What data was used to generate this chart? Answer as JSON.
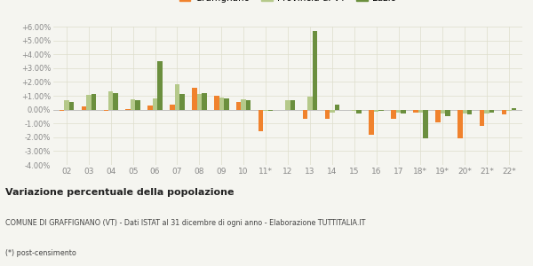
{
  "years": [
    "02",
    "03",
    "04",
    "05",
    "06",
    "07",
    "08",
    "09",
    "10",
    "11*",
    "12",
    "13",
    "14",
    "15",
    "16",
    "17",
    "18*",
    "19*",
    "20*",
    "21*",
    "22*"
  ],
  "graffignano": [
    -0.1,
    0.25,
    -0.1,
    0.02,
    0.3,
    0.35,
    1.55,
    1.0,
    0.55,
    -1.55,
    -0.05,
    -0.65,
    -0.65,
    -0.05,
    -1.8,
    -0.65,
    -0.2,
    -0.9,
    -2.1,
    -1.2,
    -0.35
  ],
  "provincia_vt": [
    0.65,
    1.05,
    1.35,
    0.75,
    0.8,
    1.85,
    1.15,
    0.9,
    0.75,
    -0.1,
    0.65,
    0.95,
    -0.2,
    -0.1,
    -0.15,
    -0.2,
    -0.2,
    -0.3,
    -0.3,
    -0.25,
    -0.1
  ],
  "lazio": [
    0.55,
    1.12,
    1.2,
    0.7,
    3.5,
    1.15,
    1.2,
    0.8,
    0.7,
    -0.1,
    0.7,
    5.65,
    0.35,
    -0.25,
    -0.1,
    -0.25,
    -2.05,
    -0.5,
    -0.35,
    -0.2,
    0.1
  ],
  "color_graffignano": "#f0822d",
  "color_provincia": "#b5c98a",
  "color_lazio": "#6b8f3e",
  "ylim_min": -4.0,
  "ylim_max": 6.0,
  "yticks": [
    -4.0,
    -3.0,
    -2.0,
    -1.0,
    0.0,
    1.0,
    2.0,
    3.0,
    4.0,
    5.0,
    6.0
  ],
  "title_bold": "Variazione percentuale della popolazione",
  "subtitle1": "COMUNE DI GRAFFIGNANO (VT) - Dati ISTAT al 31 dicembre di ogni anno - Elaborazione TUTTITALIA.IT",
  "subtitle2": "(*) post-censimento",
  "bg_color": "#f5f5f0",
  "grid_color": "#ddddcc"
}
